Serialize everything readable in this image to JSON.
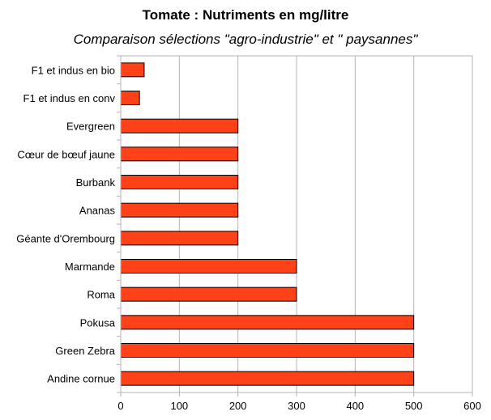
{
  "chart_data": {
    "type": "bar",
    "orientation": "horizontal",
    "title": "Tomate : Nutriments en mg/litre",
    "subtitle": "Comparaison sélections \"agro-industrie\" et \" paysannes\"",
    "categories": [
      "F1 et indus en bio",
      "F1 et indus en conv",
      "Evergreen",
      "Cœur de bœuf jaune",
      "Burbank",
      "Ananas",
      "Géante d'Orembourg",
      "Marmande",
      "Roma",
      "Pokusa",
      "Green Zebra",
      "Andine cornue"
    ],
    "values": [
      40,
      32,
      200,
      200,
      200,
      200,
      200,
      300,
      300,
      500,
      500,
      500
    ],
    "xlim": [
      0,
      600
    ],
    "xticks": [
      "0",
      "100",
      "200",
      "300",
      "400",
      "500",
      "600"
    ],
    "grid": "vertical",
    "legend": "none",
    "bar_color": "#ff4117",
    "bar_edge_color": "#000000"
  }
}
